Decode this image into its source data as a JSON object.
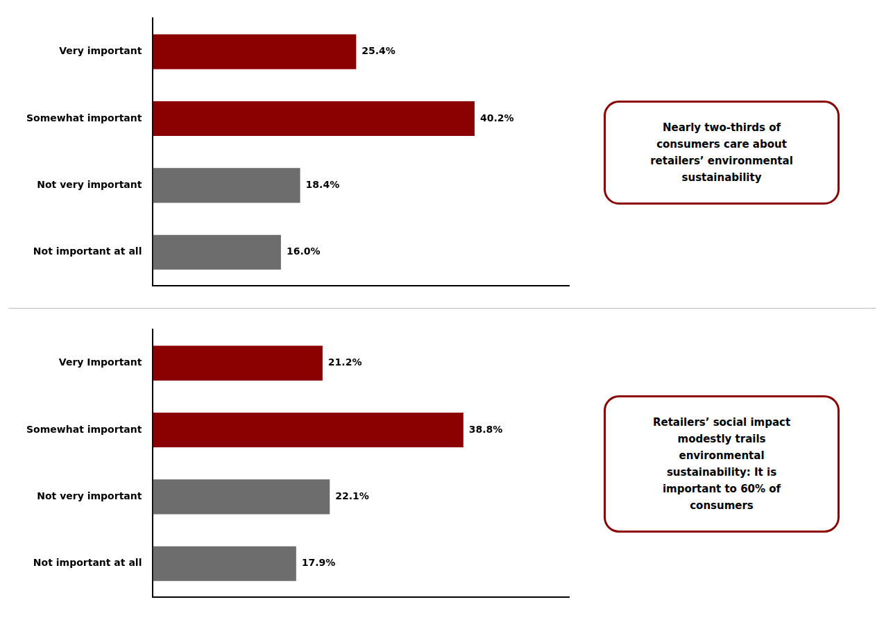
{
  "chart_data": [
    {
      "type": "bar",
      "orientation": "horizontal",
      "categories": [
        "Not important at all",
        "Not very important",
        "Somewhat important",
        "Very important"
      ],
      "values": [
        16.0,
        18.4,
        40.2,
        25.4
      ],
      "value_labels": [
        "16.0%",
        "18.4%",
        "40.2%",
        "25.4%"
      ],
      "colors": [
        "#6d6d6d",
        "#6d6d6d",
        "#8B0000",
        "#8B0000"
      ],
      "xlim": [
        0,
        52
      ],
      "tick_labels": "y",
      "grid": false,
      "data_labels": true,
      "annotations": [
        "Nearly two-thirds of\nconsumers care about\nretailers’ environmental\nsustainability"
      ]
    },
    {
      "type": "bar",
      "orientation": "horizontal",
      "categories": [
        "Not important at all",
        "Not very important",
        "Somewhat important",
        "Very Important"
      ],
      "values": [
        17.9,
        22.1,
        38.8,
        21.2
      ],
      "value_labels": [
        "17.9%",
        "22.1%",
        "38.8%",
        "21.2%"
      ],
      "colors": [
        "#6d6d6d",
        "#6d6d6d",
        "#8B0000",
        "#8B0000"
      ],
      "xlim": [
        0,
        52
      ],
      "tick_labels": "y",
      "grid": false,
      "data_labels": true,
      "annotations": [
        "Retailers’ social impact\nmodestly trails\nenvironmental\nsustainability: It is\nimportant to 60% of\nconsumers"
      ]
    }
  ]
}
